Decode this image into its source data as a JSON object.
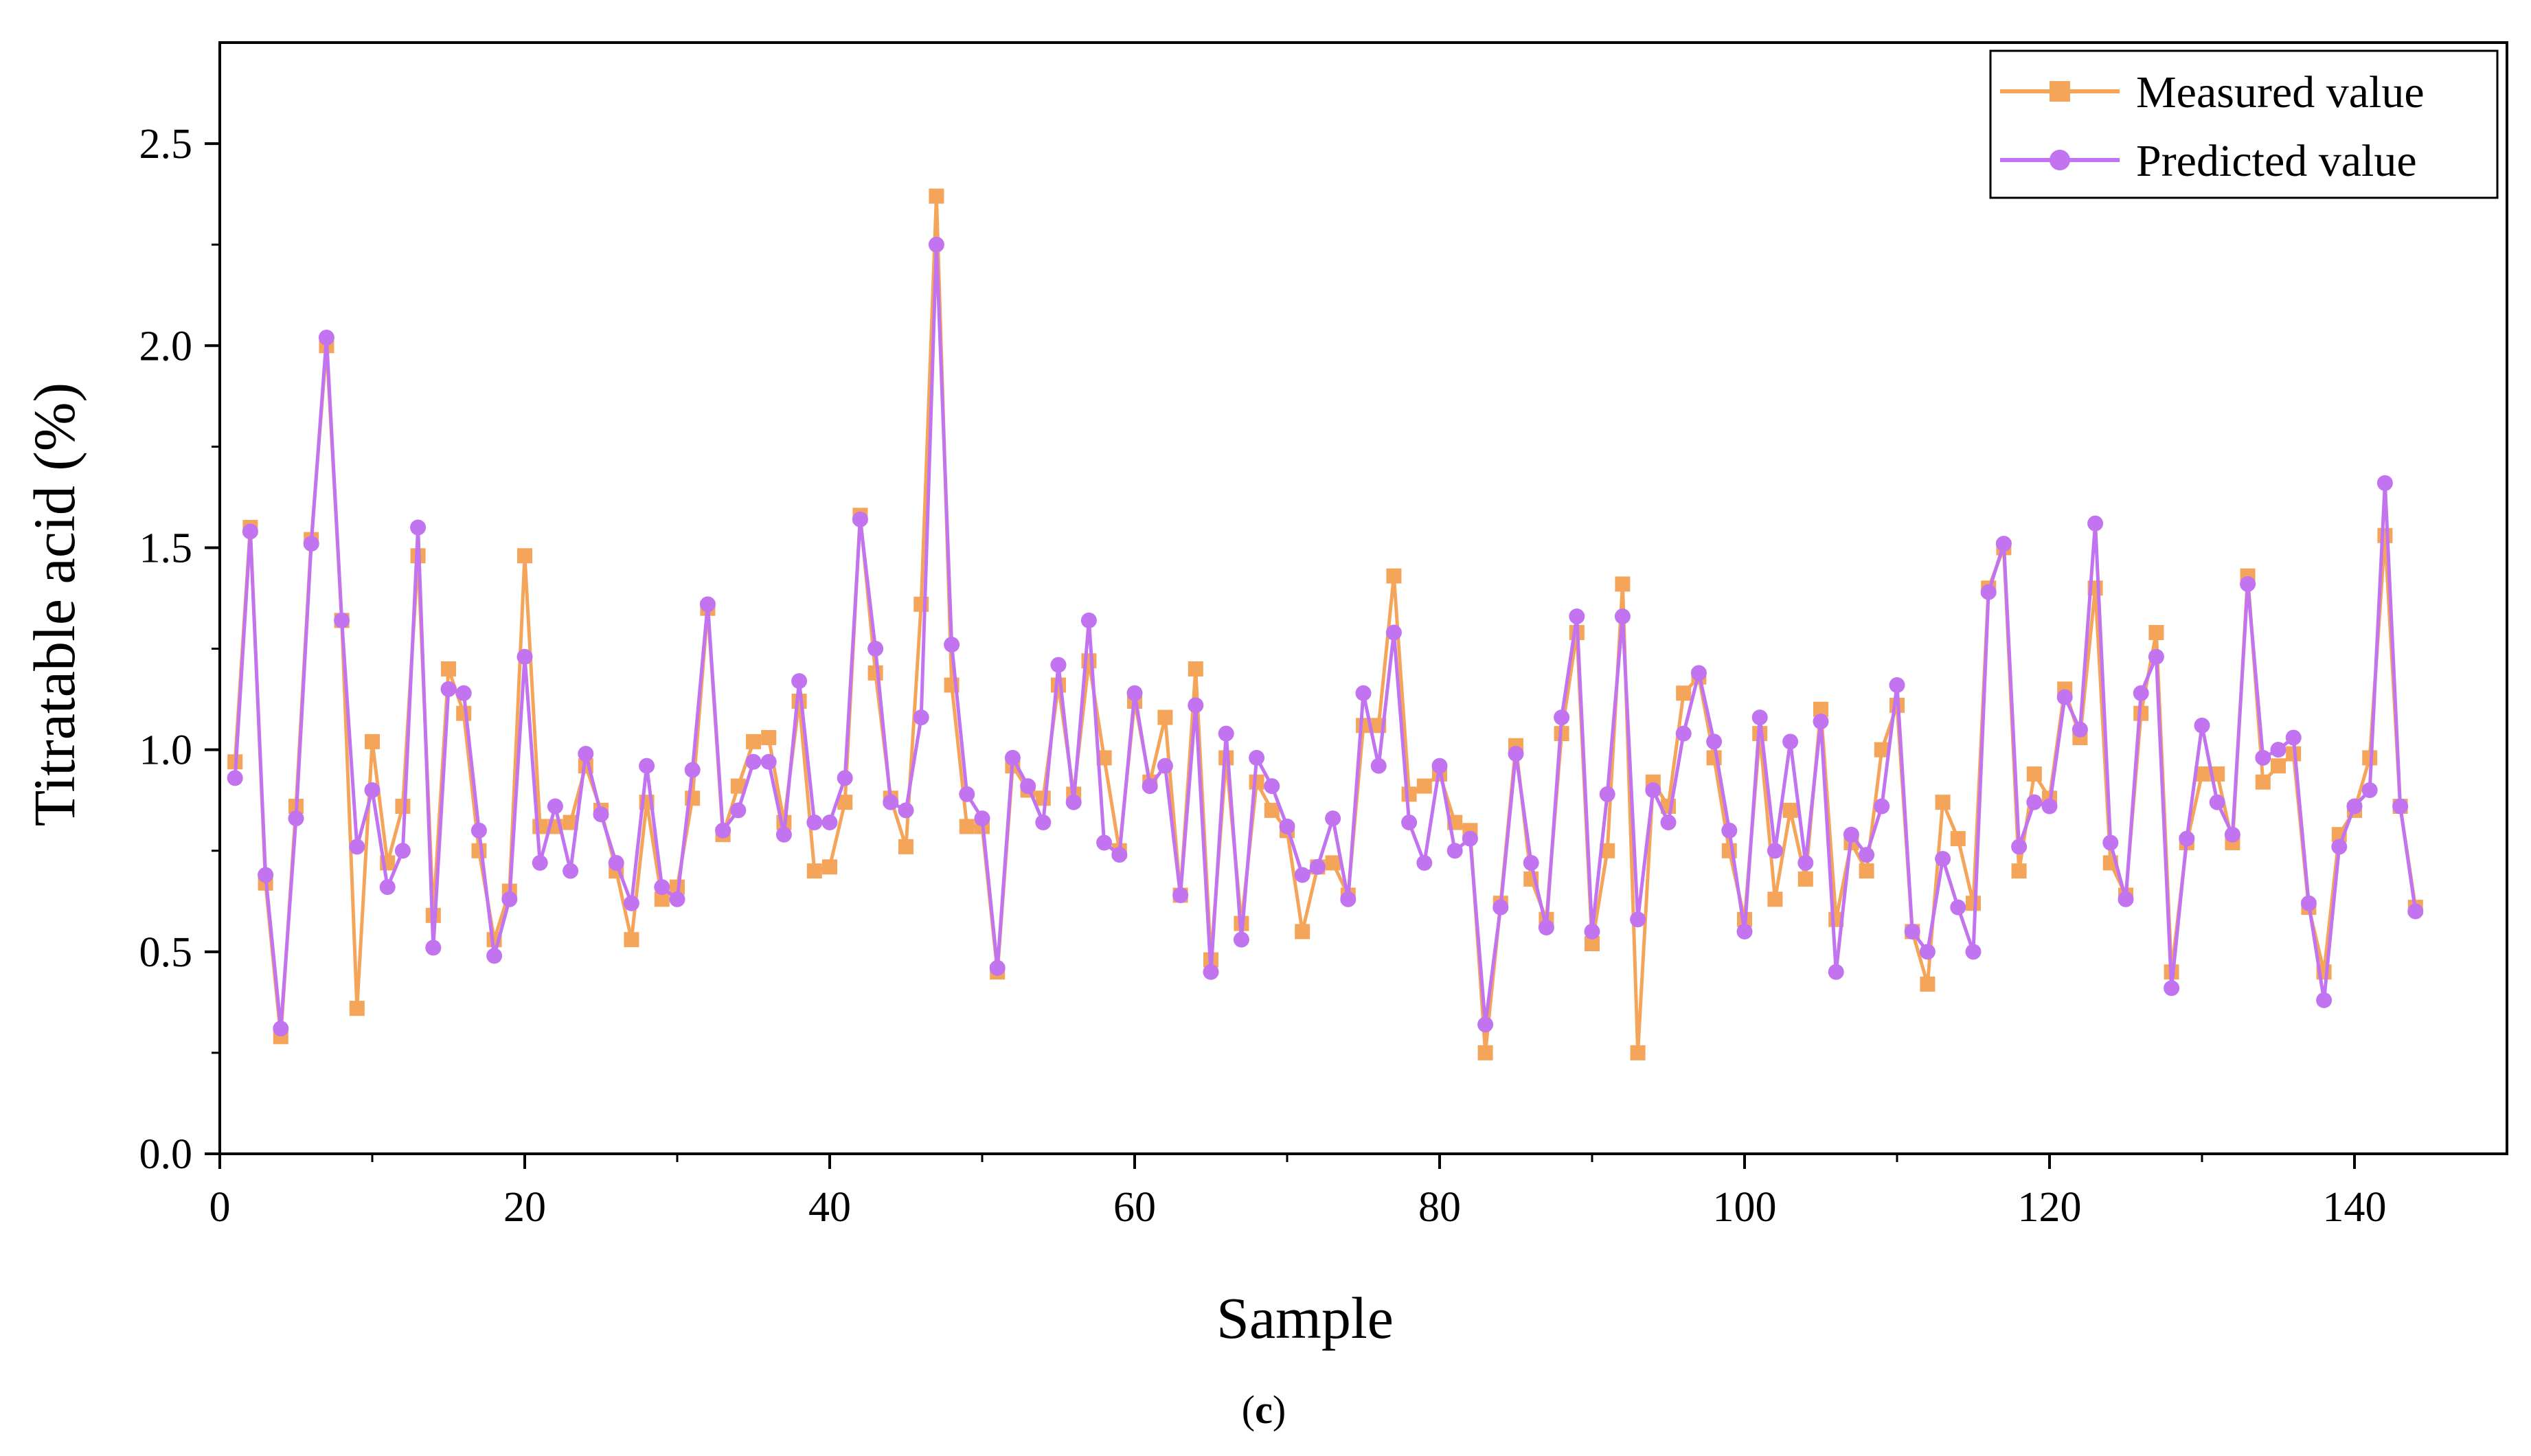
{
  "chart_data": {
    "type": "line",
    "xlabel": "Sample",
    "ylabel": "Titratable acid (%)",
    "xlim": [
      0,
      150
    ],
    "ylim": [
      0,
      2.75
    ],
    "xticks": [
      0,
      20,
      40,
      60,
      80,
      100,
      120,
      140
    ],
    "yticks": [
      0.0,
      0.5,
      1.0,
      1.5,
      2.0,
      2.5
    ],
    "xtick_labels": [
      "0",
      "20",
      "40",
      "60",
      "80",
      "100",
      "120",
      "140"
    ],
    "ytick_labels": [
      "0.0",
      "0.5",
      "1.0",
      "1.5",
      "2.0",
      "2.5"
    ],
    "grid": false,
    "legend_position": "top-right",
    "caption_open": "(",
    "caption_letter": "c",
    "caption_close": ")",
    "series": [
      {
        "name": "Measured value",
        "color": "#F5A55A",
        "marker": "square",
        "values": [
          0.97,
          1.55,
          0.67,
          0.29,
          0.86,
          1.52,
          2.0,
          1.32,
          0.36,
          1.02,
          0.72,
          0.86,
          1.48,
          0.59,
          1.2,
          1.09,
          0.75,
          0.53,
          0.65,
          1.48,
          0.81,
          0.81,
          0.82,
          0.96,
          0.85,
          0.7,
          0.53,
          0.87,
          0.63,
          0.66,
          0.88,
          1.35,
          0.79,
          0.91,
          1.02,
          1.03,
          0.82,
          1.12,
          0.7,
          0.71,
          0.87,
          1.58,
          1.19,
          0.88,
          0.76,
          1.36,
          2.37,
          1.16,
          0.81,
          0.81,
          0.45,
          0.96,
          0.9,
          0.88,
          1.16,
          0.89,
          1.22,
          0.98,
          0.75,
          1.12,
          0.92,
          1.08,
          0.64,
          1.2,
          0.48,
          0.98,
          0.57,
          0.92,
          0.85,
          0.8,
          0.55,
          0.71,
          0.72,
          0.64,
          1.06,
          1.06,
          1.43,
          0.89,
          0.91,
          0.94,
          0.82,
          0.8,
          0.25,
          0.62,
          1.01,
          0.68,
          0.58,
          1.04,
          1.29,
          0.52,
          0.75,
          1.41,
          0.25,
          0.92,
          0.86,
          1.14,
          1.18,
          0.98,
          0.75,
          0.58,
          1.04,
          0.63,
          0.85,
          0.68,
          1.1,
          0.58,
          0.77,
          0.7,
          1.0,
          1.11,
          0.55,
          0.42,
          0.87,
          0.78,
          0.62,
          1.4,
          1.5,
          0.7,
          0.94,
          0.88,
          1.15,
          1.03,
          1.4,
          0.72,
          0.64,
          1.09,
          1.29,
          0.45,
          0.77,
          0.94,
          0.94,
          0.77,
          1.43,
          0.92,
          0.96,
          0.99,
          0.61,
          0.45,
          0.79,
          0.85,
          0.98,
          1.53,
          0.86,
          0.61
        ]
      },
      {
        "name": "Predicted value",
        "color": "#C173F0",
        "marker": "circle",
        "values": [
          0.93,
          1.54,
          0.69,
          0.31,
          0.83,
          1.51,
          2.02,
          1.32,
          0.76,
          0.9,
          0.66,
          0.75,
          1.55,
          0.51,
          1.15,
          1.14,
          0.8,
          0.49,
          0.63,
          1.23,
          0.72,
          0.86,
          0.7,
          0.99,
          0.84,
          0.72,
          0.62,
          0.96,
          0.66,
          0.63,
          0.95,
          1.36,
          0.8,
          0.85,
          0.97,
          0.97,
          0.79,
          1.17,
          0.82,
          0.82,
          0.93,
          1.57,
          1.25,
          0.87,
          0.85,
          1.08,
          2.25,
          1.26,
          0.89,
          0.83,
          0.46,
          0.98,
          0.91,
          0.82,
          1.21,
          0.87,
          1.32,
          0.77,
          0.74,
          1.14,
          0.91,
          0.96,
          0.64,
          1.11,
          0.45,
          1.04,
          0.53,
          0.98,
          0.91,
          0.81,
          0.69,
          0.71,
          0.83,
          0.63,
          1.14,
          0.96,
          1.29,
          0.82,
          0.72,
          0.96,
          0.75,
          0.78,
          0.32,
          0.61,
          0.99,
          0.72,
          0.56,
          1.08,
          1.33,
          0.55,
          0.89,
          1.33,
          0.58,
          0.9,
          0.82,
          1.04,
          1.19,
          1.02,
          0.8,
          0.55,
          1.08,
          0.75,
          1.02,
          0.72,
          1.07,
          0.45,
          0.79,
          0.74,
          0.86,
          1.16,
          0.55,
          0.5,
          0.73,
          0.61,
          0.5,
          1.39,
          1.51,
          0.76,
          0.87,
          0.86,
          1.13,
          1.05,
          1.56,
          0.77,
          0.63,
          1.14,
          1.23,
          0.41,
          0.78,
          1.06,
          0.87,
          0.79,
          1.41,
          0.98,
          1.0,
          1.03,
          0.62,
          0.38,
          0.76,
          0.86,
          0.9,
          1.66,
          0.86,
          0.6
        ]
      }
    ]
  }
}
